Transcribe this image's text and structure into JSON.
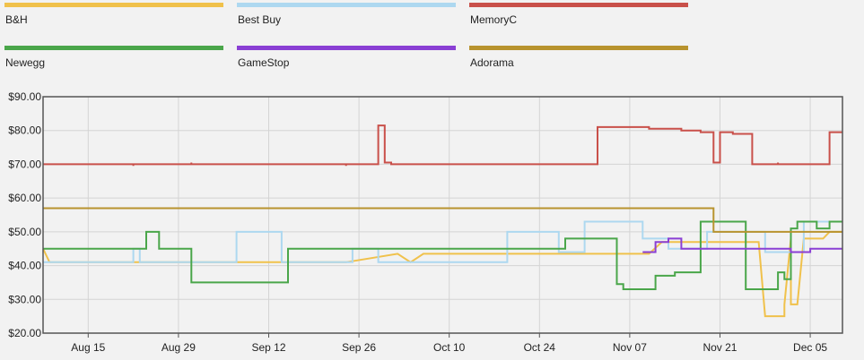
{
  "chart_data": {
    "type": "line",
    "title": "",
    "xlabel": "",
    "ylabel": "",
    "grid": true,
    "legend_position": "top",
    "x_ticks": [
      "Aug 15",
      "Aug 29",
      "Sep 12",
      "Sep 26",
      "Oct 10",
      "Oct 24",
      "Nov 07",
      "Nov 21",
      "Dec 05"
    ],
    "x_range": [
      "2023-08-08",
      "2023-12-10"
    ],
    "y_ticks": [
      "$20.00",
      "$30.00",
      "$40.00",
      "$50.00",
      "$60.00",
      "$70.00",
      "$80.00",
      "$90.00"
    ],
    "ylim": [
      20,
      90
    ],
    "series": [
      {
        "name": "B&H",
        "color": "#f0c14b",
        "points": [
          [
            "2023-08-08",
            45
          ],
          [
            "2023-08-09",
            41
          ],
          [
            "2023-08-23",
            41
          ],
          [
            "2023-09-10",
            41
          ],
          [
            "2023-09-12",
            41
          ],
          [
            "2023-09-24",
            41
          ],
          [
            "2023-10-02",
            43.5
          ],
          [
            "2023-10-04",
            41
          ],
          [
            "2023-10-06",
            43.5
          ],
          [
            "2023-10-26",
            43.5
          ],
          [
            "2023-11-10",
            43.5
          ],
          [
            "2023-11-12",
            47
          ],
          [
            "2023-11-23",
            47
          ],
          [
            "2023-11-27",
            47
          ],
          [
            "2023-11-28",
            25
          ],
          [
            "2023-12-01",
            25
          ],
          [
            "2023-12-01",
            28.5
          ],
          [
            "2023-12-02",
            48
          ],
          [
            "2023-12-02",
            28.5
          ],
          [
            "2023-12-03",
            28.5
          ],
          [
            "2023-12-04",
            48
          ],
          [
            "2023-12-07",
            48
          ],
          [
            "2023-12-08",
            50
          ],
          [
            "2023-12-10",
            50
          ]
        ]
      },
      {
        "name": "Best Buy",
        "color": "#add8f0",
        "points": [
          [
            "2023-08-08",
            41
          ],
          [
            "2023-08-22",
            41
          ],
          [
            "2023-08-22",
            45
          ],
          [
            "2023-08-23",
            45
          ],
          [
            "2023-08-23",
            41
          ],
          [
            "2023-09-07",
            41
          ],
          [
            "2023-09-07",
            50
          ],
          [
            "2023-09-14",
            50
          ],
          [
            "2023-09-14",
            41
          ],
          [
            "2023-09-25",
            41
          ],
          [
            "2023-09-25",
            45
          ],
          [
            "2023-09-29",
            45
          ],
          [
            "2023-09-29",
            41
          ],
          [
            "2023-10-19",
            41
          ],
          [
            "2023-10-19",
            50
          ],
          [
            "2023-10-27",
            50
          ],
          [
            "2023-10-27",
            44
          ],
          [
            "2023-10-31",
            44
          ],
          [
            "2023-10-31",
            53
          ],
          [
            "2023-11-09",
            53
          ],
          [
            "2023-11-09",
            48
          ],
          [
            "2023-11-13",
            48
          ],
          [
            "2023-11-13",
            45
          ],
          [
            "2023-11-19",
            45
          ],
          [
            "2023-11-19",
            50
          ],
          [
            "2023-11-28",
            50
          ],
          [
            "2023-11-28",
            44
          ],
          [
            "2023-12-04",
            44
          ],
          [
            "2023-12-04",
            53
          ],
          [
            "2023-12-10",
            53
          ]
        ]
      },
      {
        "name": "MemoryC",
        "color": "#c9504a",
        "points": [
          [
            "2023-08-08",
            70
          ],
          [
            "2023-08-22",
            70
          ],
          [
            "2023-08-22",
            69.5
          ],
          [
            "2023-08-22",
            70
          ],
          [
            "2023-08-31",
            70
          ],
          [
            "2023-08-31",
            70.5
          ],
          [
            "2023-08-31",
            70
          ],
          [
            "2023-09-24",
            70
          ],
          [
            "2023-09-24",
            69.5
          ],
          [
            "2023-09-24",
            70
          ],
          [
            "2023-09-29",
            70
          ],
          [
            "2023-09-29",
            81.5
          ],
          [
            "2023-09-30",
            81.5
          ],
          [
            "2023-09-30",
            70.5
          ],
          [
            "2023-10-01",
            70.5
          ],
          [
            "2023-10-01",
            70
          ],
          [
            "2023-11-02",
            70
          ],
          [
            "2023-11-02",
            81
          ],
          [
            "2023-11-10",
            81
          ],
          [
            "2023-11-10",
            80.5
          ],
          [
            "2023-11-15",
            80.5
          ],
          [
            "2023-11-15",
            80
          ],
          [
            "2023-11-18",
            80
          ],
          [
            "2023-11-18",
            79.5
          ],
          [
            "2023-11-20",
            79.5
          ],
          [
            "2023-11-20",
            70.5
          ],
          [
            "2023-11-21",
            70.5
          ],
          [
            "2023-11-21",
            79.5
          ],
          [
            "2023-11-23",
            79.5
          ],
          [
            "2023-11-23",
            79
          ],
          [
            "2023-11-26",
            79
          ],
          [
            "2023-11-26",
            70
          ],
          [
            "2023-11-30",
            70
          ],
          [
            "2023-11-30",
            70.5
          ],
          [
            "2023-11-30",
            70
          ],
          [
            "2023-12-08",
            70
          ],
          [
            "2023-12-08",
            79.5
          ],
          [
            "2023-12-10",
            79.5
          ]
        ]
      },
      {
        "name": "Newegg",
        "color": "#4aa64a",
        "points": [
          [
            "2023-08-08",
            45
          ],
          [
            "2023-08-24",
            45
          ],
          [
            "2023-08-24",
            50
          ],
          [
            "2023-08-26",
            50
          ],
          [
            "2023-08-26",
            45
          ],
          [
            "2023-08-31",
            45
          ],
          [
            "2023-08-31",
            35
          ],
          [
            "2023-09-15",
            35
          ],
          [
            "2023-09-15",
            45
          ],
          [
            "2023-10-28",
            45
          ],
          [
            "2023-10-28",
            48
          ],
          [
            "2023-11-05",
            48
          ],
          [
            "2023-11-05",
            34.5
          ],
          [
            "2023-11-06",
            34.5
          ],
          [
            "2023-11-06",
            33
          ],
          [
            "2023-11-11",
            33
          ],
          [
            "2023-11-11",
            37
          ],
          [
            "2023-11-14",
            37
          ],
          [
            "2023-11-14",
            38
          ],
          [
            "2023-11-18",
            38
          ],
          [
            "2023-11-18",
            53
          ],
          [
            "2023-11-25",
            53
          ],
          [
            "2023-11-25",
            33
          ],
          [
            "2023-11-30",
            33
          ],
          [
            "2023-11-30",
            38
          ],
          [
            "2023-12-01",
            38
          ],
          [
            "2023-12-01",
            36
          ],
          [
            "2023-12-02",
            36
          ],
          [
            "2023-12-02",
            51
          ],
          [
            "2023-12-03",
            51
          ],
          [
            "2023-12-03",
            53
          ],
          [
            "2023-12-06",
            53
          ],
          [
            "2023-12-06",
            51
          ],
          [
            "2023-12-08",
            51
          ],
          [
            "2023-12-08",
            53
          ],
          [
            "2023-12-10",
            53
          ]
        ]
      },
      {
        "name": "GameStop",
        "color": "#8a3fd4",
        "points": [
          [
            "2023-11-09",
            44
          ],
          [
            "2023-11-11",
            44
          ],
          [
            "2023-11-11",
            47
          ],
          [
            "2023-11-13",
            47
          ],
          [
            "2023-11-13",
            48
          ],
          [
            "2023-11-15",
            48
          ],
          [
            "2023-11-15",
            45
          ],
          [
            "2023-12-02",
            45
          ],
          [
            "2023-12-02",
            44
          ],
          [
            "2023-12-05",
            44
          ],
          [
            "2023-12-05",
            45
          ],
          [
            "2023-12-10",
            45
          ]
        ]
      },
      {
        "name": "Adorama",
        "color": "#b8932e",
        "points": [
          [
            "2023-08-08",
            57
          ],
          [
            "2023-11-20",
            57
          ],
          [
            "2023-11-20",
            50
          ],
          [
            "2023-12-10",
            50
          ]
        ]
      }
    ]
  }
}
